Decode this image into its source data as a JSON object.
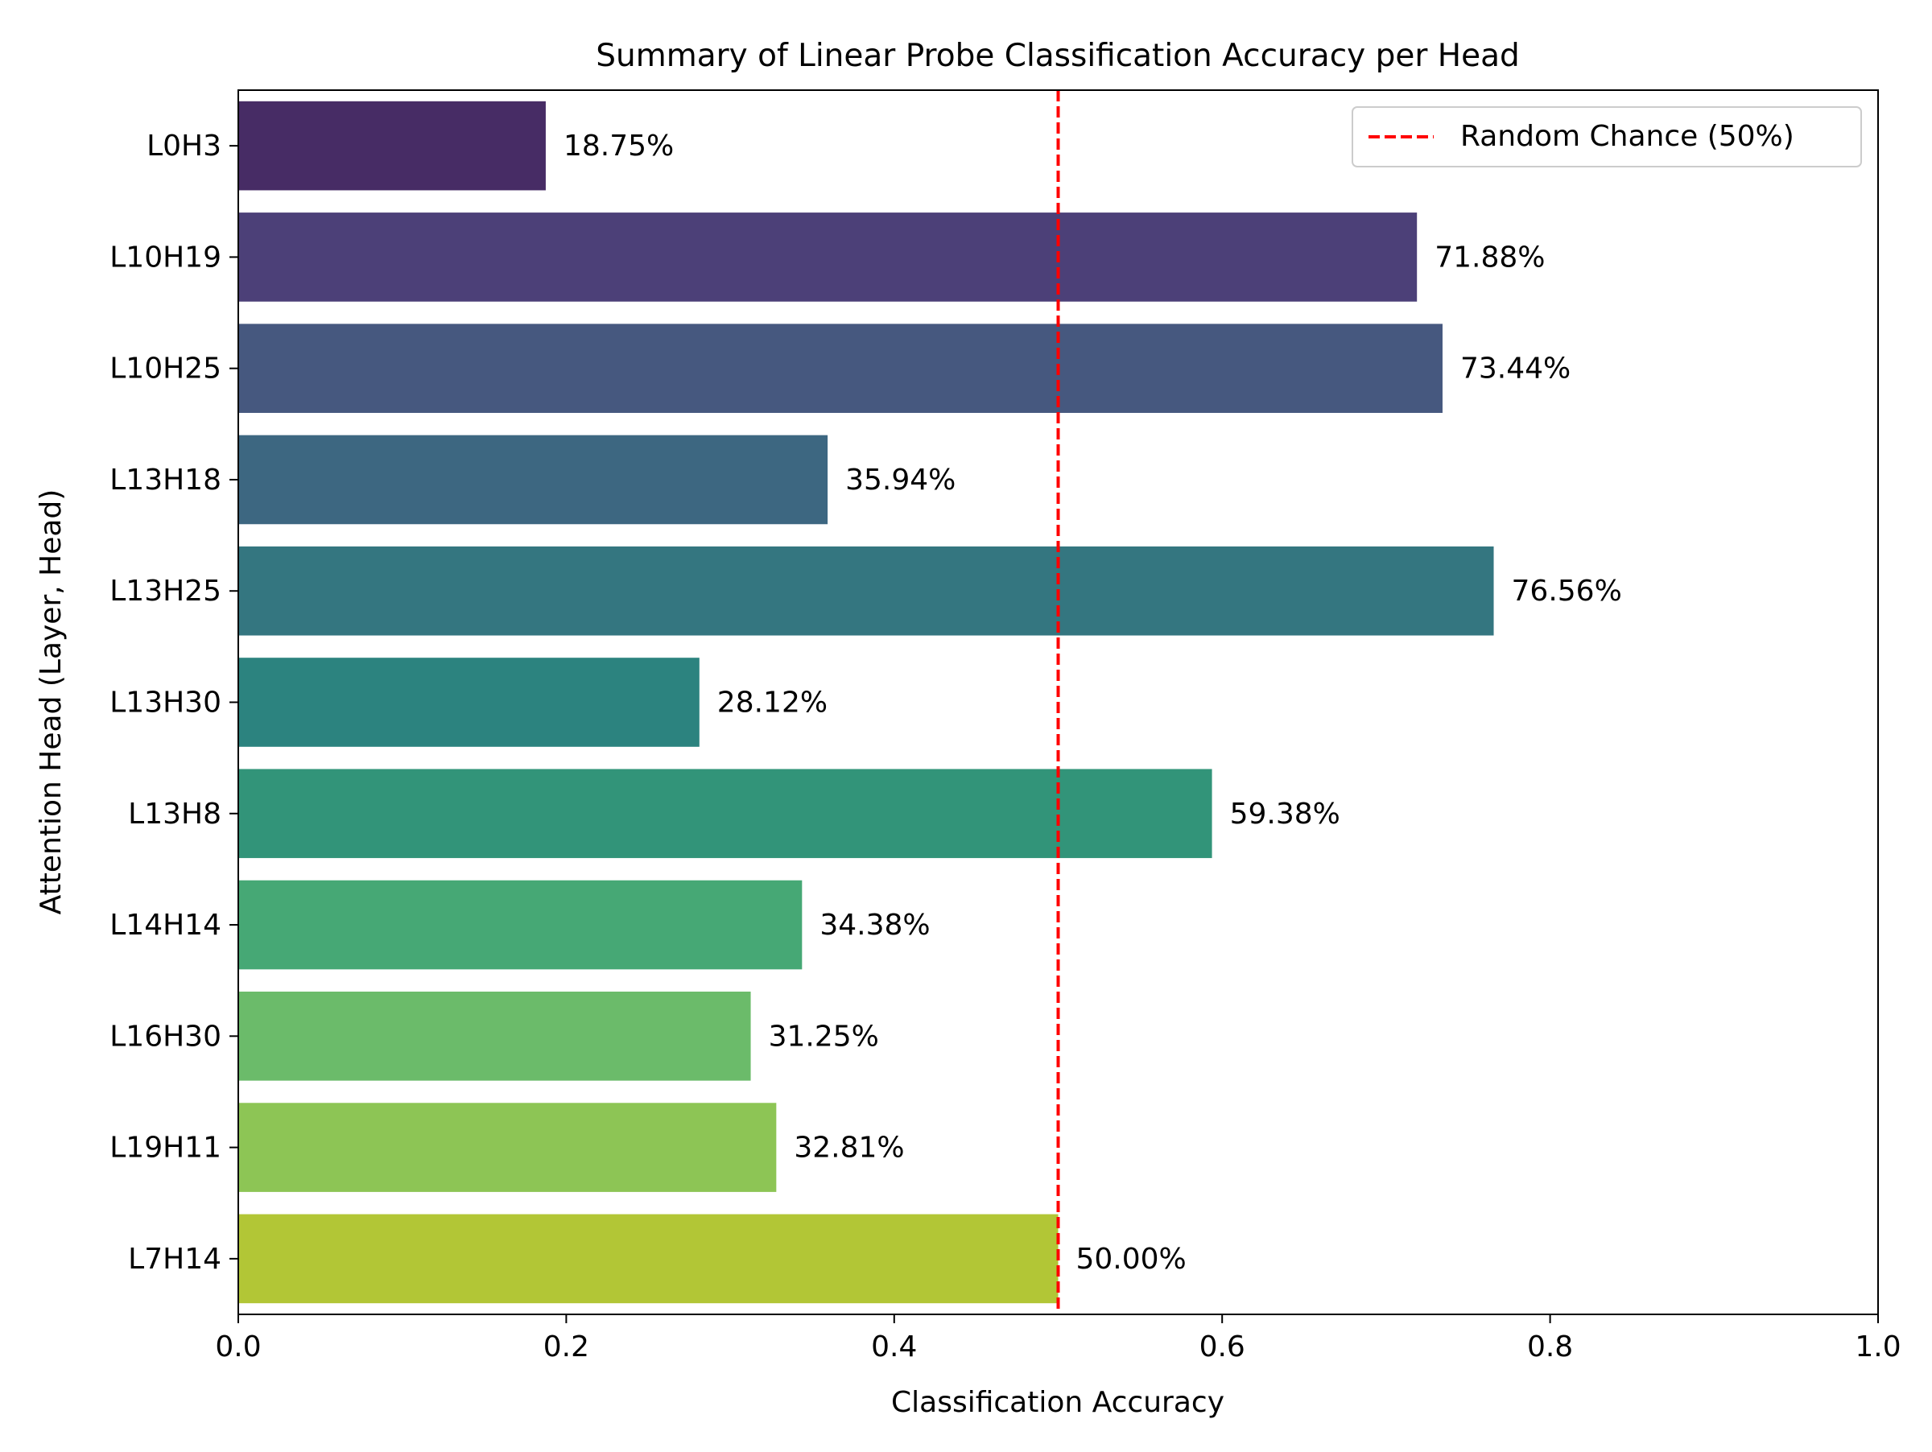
{
  "chart_data": {
    "type": "bar",
    "orientation": "horizontal",
    "title": "Summary of Linear Probe Classification Accuracy per Head",
    "xlabel": "Classification Accuracy",
    "ylabel": "Attention Head (Layer, Head)",
    "xlim": [
      0.0,
      1.0
    ],
    "xticks": [
      0.0,
      0.2,
      0.4,
      0.6,
      0.8,
      1.0
    ],
    "xtick_labels": [
      "0.0",
      "0.2",
      "0.4",
      "0.6",
      "0.8",
      "1.0"
    ],
    "grid": false,
    "categories": [
      "L0H3",
      "L10H19",
      "L10H25",
      "L13H18",
      "L13H25",
      "L13H30",
      "L13H8",
      "L14H14",
      "L16H30",
      "L19H11",
      "L7H14"
    ],
    "values": [
      0.1875,
      0.7188,
      0.7344,
      0.3594,
      0.7656,
      0.2812,
      0.5938,
      0.3438,
      0.3125,
      0.3281,
      0.5
    ],
    "data_labels": [
      "18.75%",
      "71.88%",
      "73.44%",
      "35.94%",
      "76.56%",
      "28.12%",
      "59.38%",
      "34.38%",
      "31.25%",
      "32.81%",
      "50.00%"
    ],
    "colors": [
      "#472c65",
      "#4c4078",
      "#46587f",
      "#3d6781",
      "#347680",
      "#2c837f",
      "#329479",
      "#46a875",
      "#6bbb6a",
      "#8dc555",
      "#b2c636"
    ],
    "reference_line": {
      "x": 0.5,
      "color": "#ff0000",
      "style": "dashed",
      "label": "Random Chance (50%)"
    },
    "legend": {
      "placement": "top-right",
      "entries": [
        "Random Chance (50%)"
      ]
    }
  }
}
